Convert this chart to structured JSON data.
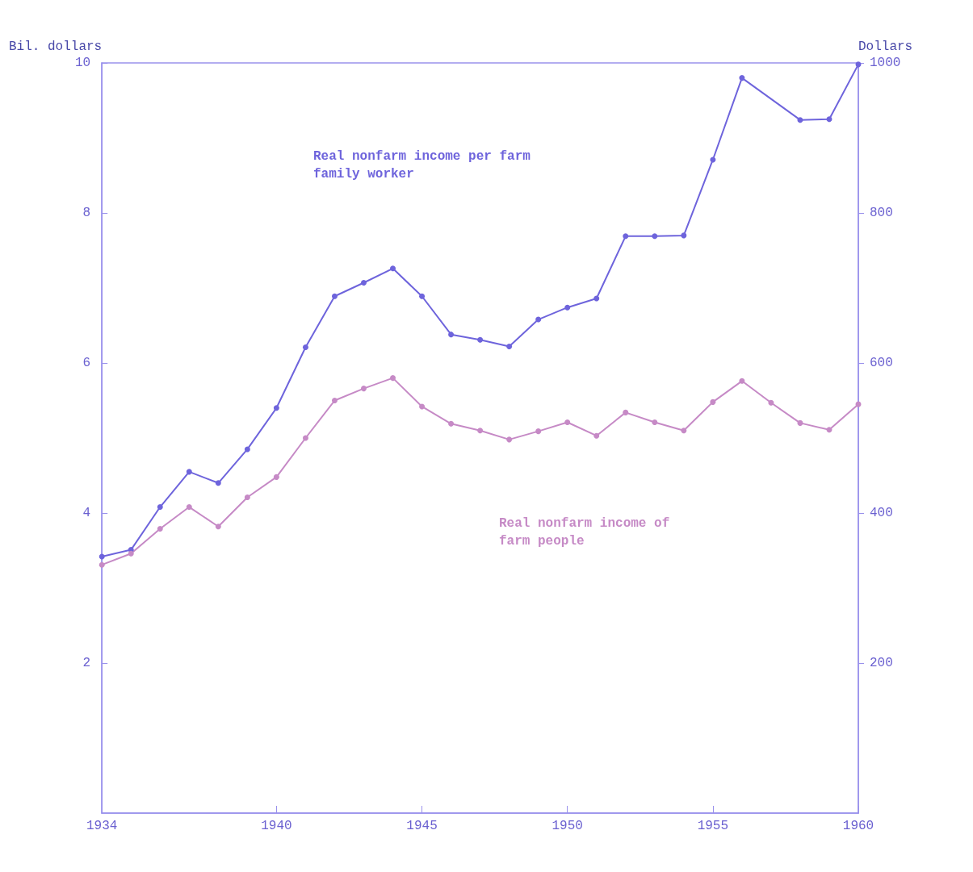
{
  "chart_data": {
    "type": "line",
    "ylabel": "Bil. dollars",
    "y2label": "Dollars",
    "xlim": [
      1934,
      1960
    ],
    "xticks": [
      1934,
      1940,
      1945,
      1950,
      1955,
      1960
    ],
    "ylim": [
      0,
      10
    ],
    "yticks": [
      2,
      4,
      6,
      8,
      10
    ],
    "y2lim": [
      0,
      1000
    ],
    "y2ticks": [
      200,
      400,
      600,
      800,
      1000
    ],
    "grid": false,
    "marker": "circle",
    "line_style": "solid",
    "x": [
      1934,
      1935,
      1936,
      1937,
      1938,
      1939,
      1940,
      1941,
      1942,
      1943,
      1944,
      1945,
      1946,
      1947,
      1948,
      1949,
      1950,
      1951,
      1952,
      1953,
      1954,
      1955,
      1956,
      1957,
      1958,
      1959,
      1960
    ],
    "series": [
      {
        "color": "#6e64dc",
        "axis": "y2",
        "x": [
          1934,
          1935,
          1936,
          1937,
          1938,
          1939,
          1940,
          1941,
          1942,
          1943,
          1944,
          1945,
          1946,
          1947,
          1948,
          1949,
          1950,
          1951,
          1952,
          1953,
          1954,
          1955,
          1956,
          1958,
          1959,
          1960
        ],
        "values": [
          342,
          351,
          408,
          455,
          440,
          485,
          540,
          621,
          689,
          707,
          726,
          689,
          638,
          631,
          622,
          658,
          674,
          686,
          769,
          769,
          770,
          871,
          980,
          924,
          925,
          998
        ]
      },
      {
        "color": "#c68ac6",
        "values": [
          3.31,
          3.46,
          3.79,
          4.08,
          3.82,
          4.21,
          4.48,
          5.0,
          5.5,
          5.66,
          5.8,
          5.42,
          5.19,
          5.1,
          4.98,
          5.09,
          5.21,
          5.03,
          5.34,
          5.21,
          5.1,
          5.48,
          5.76,
          5.47,
          5.2,
          5.11,
          5.45
        ]
      }
    ],
    "annotations": [
      "Real nonfarm income per farm\nfamily worker",
      "Real nonfarm income of\nfarm people"
    ]
  }
}
